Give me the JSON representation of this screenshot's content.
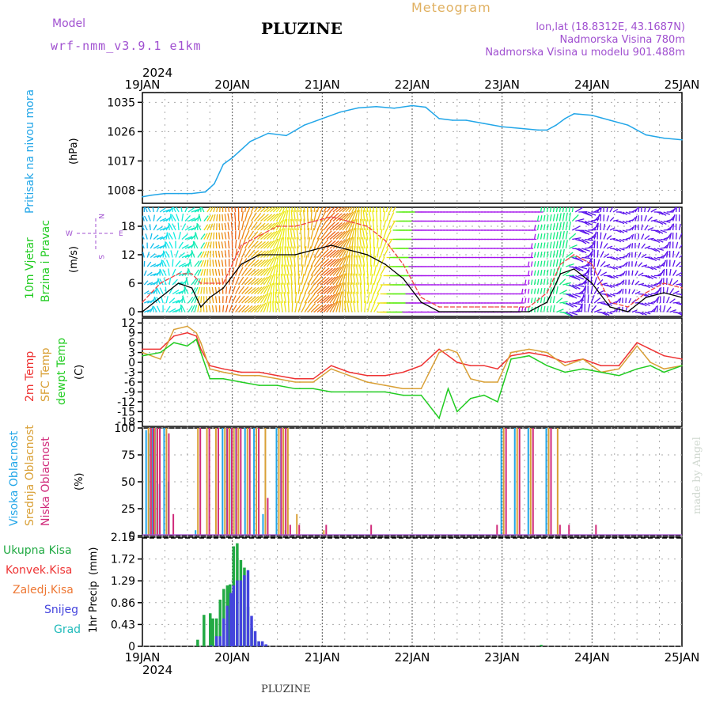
{
  "header": {
    "model_label": "Model",
    "model_name": "wrf-nmm_v3.9.1 e1km",
    "station": "PLUZINE",
    "meteogram": "Meteogram",
    "lonlat": "lon,lat (18.8312E, 43.1687N)",
    "altitude": "Nadmorska Visina 780m",
    "model_altitude": "Nadmorska Visina u modelu 901.488m",
    "credit": "made by Angel",
    "footer": "PLUZINE"
  },
  "time_axis": {
    "year": "2024",
    "labels": [
      "19JAN",
      "20JAN",
      "21JAN",
      "22JAN",
      "23JAN",
      "24JAN",
      "25JAN"
    ]
  },
  "colors": {
    "pressure": "#22a6e8",
    "wind_speed": "#ee4444",
    "wind_gust": "#000000",
    "t2m": "#ee3333",
    "sfc": "#d9a036",
    "dewpt": "#22cc22",
    "high_cloud": "#22a6e8",
    "mid_cloud": "#d9a036",
    "low_cloud": "#d02a7a",
    "total_precip": "#22aa44",
    "conv_precip": "#ee3333",
    "frz_precip": "#ee7733",
    "snow": "#4444dd",
    "hail": "#22bbbb",
    "purple": "#a050d0"
  },
  "chart_data": [
    {
      "type": "line",
      "panel": "pressure",
      "ylabel_name": "Pritisak na nivou mora",
      "ylabel_unit": "(hPa)",
      "ylim": [
        1004,
        1038
      ],
      "yticks": [
        1008,
        1017,
        1026,
        1035
      ],
      "x": [
        0,
        0.1,
        0.25,
        0.4,
        0.55,
        0.7,
        0.8,
        0.9,
        1.0,
        1.2,
        1.4,
        1.6,
        1.8,
        2.0,
        2.2,
        2.4,
        2.6,
        2.8,
        3.0,
        3.15,
        3.3,
        3.45,
        3.6,
        3.8,
        4.0,
        4.2,
        4.4,
        4.5,
        4.6,
        4.7,
        4.8,
        5.0,
        5.2,
        5.4,
        5.6,
        5.8,
        6.0
      ],
      "series": [
        {
          "key": "pressure",
          "values": [
            1006,
            1006.5,
            1007,
            1007,
            1007,
            1007.5,
            1010,
            1016,
            1018,
            1023,
            1025.5,
            1024.8,
            1028,
            1030,
            1032,
            1033.3,
            1033.7,
            1033.2,
            1034,
            1033.5,
            1030,
            1029.5,
            1029.5,
            1028.5,
            1027.5,
            1027,
            1026.5,
            1026.5,
            1028,
            1030,
            1031.5,
            1031,
            1029.5,
            1028,
            1025,
            1024,
            1023.5
          ]
        }
      ]
    },
    {
      "type": "line",
      "panel": "wind",
      "ylabel_name": "10m Vjetar",
      "ylabel_name2": "Brzina i Pravac",
      "ylabel_unit": "(m/s)",
      "compass": [
        "W",
        "E",
        "N",
        "S"
      ],
      "ylim": [
        -1,
        22
      ],
      "yticks": [
        0,
        6,
        12,
        18
      ],
      "x": [
        0,
        0.2,
        0.4,
        0.55,
        0.65,
        0.75,
        0.9,
        1.1,
        1.3,
        1.5,
        1.7,
        1.9,
        2.1,
        2.3,
        2.5,
        2.7,
        2.9,
        3.1,
        3.3,
        3.5,
        3.7,
        3.9,
        4.1,
        4.3,
        4.5,
        4.65,
        4.8,
        5.0,
        5.2,
        5.4,
        5.6,
        5.8,
        6.0
      ],
      "series": [
        {
          "key": "wind_speed",
          "values": [
            2,
            6,
            8,
            8,
            6,
            6,
            6,
            14,
            16,
            18,
            18,
            19,
            20,
            19,
            18,
            15,
            10,
            3,
            1,
            1,
            1,
            1,
            1,
            1,
            4,
            10,
            12,
            10,
            2,
            1,
            4,
            6,
            5
          ]
        },
        {
          "key": "wind_gust",
          "values": [
            0,
            3,
            6,
            5,
            1,
            3,
            5,
            10,
            12,
            12,
            12,
            13,
            14,
            13,
            12,
            10,
            7,
            2,
            0,
            0,
            0,
            0,
            0,
            0,
            2,
            8,
            9,
            6,
            1,
            0,
            3,
            4,
            3
          ]
        }
      ]
    },
    {
      "type": "line",
      "panel": "temperature",
      "ylabel_names": [
        "2m Temp",
        "SFC Temp",
        "dewpt Temp"
      ],
      "ylabel_unit": "(C)",
      "ylim": [
        -19.5,
        13.5
      ],
      "yticks": [
        12,
        9,
        6,
        3,
        0,
        -3,
        -6,
        -9,
        -12,
        -15,
        -18
      ],
      "x": [
        0,
        0.2,
        0.35,
        0.5,
        0.6,
        0.65,
        0.75,
        0.9,
        1.1,
        1.3,
        1.5,
        1.7,
        1.9,
        2.1,
        2.3,
        2.5,
        2.7,
        2.9,
        3.1,
        3.3,
        3.4,
        3.5,
        3.65,
        3.8,
        3.95,
        4.1,
        4.3,
        4.5,
        4.7,
        4.9,
        5.1,
        5.3,
        5.5,
        5.65,
        5.8,
        6.0
      ],
      "series": [
        {
          "key": "t2m",
          "values": [
            4,
            4,
            8,
            9,
            8,
            4,
            -1,
            -2,
            -3,
            -3,
            -4,
            -5,
            -5,
            -1,
            -3,
            -4,
            -4,
            -3,
            -1,
            4,
            2,
            0,
            -1,
            -1,
            -2,
            2,
            3,
            2,
            0,
            1,
            -1,
            -1,
            6,
            4,
            2,
            1
          ]
        },
        {
          "key": "sfc",
          "values": [
            3,
            1,
            10,
            11,
            9,
            6,
            -2,
            -3,
            -4,
            -4,
            -5,
            -6,
            -6,
            -2,
            -4,
            -6,
            -7,
            -8,
            -8,
            3,
            4,
            3,
            -5,
            -6,
            -6,
            3,
            4,
            3,
            -1,
            1,
            -3,
            -2,
            5,
            0,
            -2,
            -1
          ]
        },
        {
          "key": "dewpt",
          "values": [
            2,
            3,
            6,
            5,
            7,
            3,
            -5,
            -5,
            -6,
            -7,
            -7,
            -8,
            -8,
            -9,
            -9,
            -9,
            -9,
            -10,
            -10,
            -17,
            -8,
            -15,
            -11,
            -10,
            -12,
            1,
            2,
            -1,
            -3,
            -2,
            -3,
            -4,
            -2,
            -1,
            -3,
            -1
          ]
        }
      ]
    },
    {
      "type": "bar",
      "panel": "cloud",
      "ylabel_names": [
        "Visoka Oblacnost",
        "Srednja Oblacnost",
        "Niska Oblacnost"
      ],
      "ylabel_unit": "(%)",
      "ylim": [
        0,
        100
      ],
      "yticks": [
        0,
        25,
        50,
        75,
        100
      ],
      "x": [
        0.05,
        0.08,
        0.12,
        0.15,
        0.2,
        0.25,
        0.3,
        0.6,
        0.7,
        0.8,
        0.9,
        0.95,
        1.0,
        1.05,
        1.15,
        1.25,
        1.35,
        1.5,
        1.55,
        1.6,
        1.7,
        2.0,
        2.5,
        3.9,
        4.0,
        4.15,
        4.3,
        4.5,
        4.6,
        4.7,
        5.0
      ],
      "series": [
        {
          "key": "high_cloud",
          "values": [
            98,
            95,
            100,
            100,
            48,
            100,
            50,
            5,
            0,
            0,
            100,
            100,
            100,
            100,
            100,
            100,
            20,
            100,
            100,
            5,
            0,
            0,
            0,
            0,
            100,
            100,
            100,
            100,
            0,
            0,
            0
          ]
        },
        {
          "key": "mid_cloud",
          "values": [
            100,
            100,
            100,
            100,
            0,
            100,
            0,
            100,
            100,
            100,
            100,
            100,
            100,
            100,
            100,
            100,
            100,
            100,
            100,
            100,
            20,
            5,
            0,
            0,
            100,
            100,
            100,
            100,
            100,
            0,
            0
          ]
        },
        {
          "key": "low_cloud",
          "values": [
            100,
            100,
            100,
            100,
            0,
            95,
            20,
            100,
            100,
            100,
            100,
            100,
            100,
            100,
            100,
            100,
            35,
            100,
            100,
            10,
            10,
            10,
            10,
            10,
            100,
            100,
            100,
            100,
            10,
            10,
            10
          ]
        }
      ]
    },
    {
      "type": "bar",
      "panel": "precip",
      "ylabel_name": "1hr Precip",
      "ylabel_unit": "(mm)",
      "legend": [
        "Ukupna Kisa",
        "Konvek.Kisa",
        "Zaledj.Kisa",
        "Snijeg",
        "Grad"
      ],
      "ylim": [
        0,
        2.15
      ],
      "yticks": [
        0,
        0.43,
        0.86,
        1.29,
        1.72,
        2.15
      ],
      "x": [
        0.63,
        0.7,
        0.74,
        0.77,
        0.8,
        0.84,
        0.88,
        0.92,
        0.96,
        0.99,
        1.03,
        1.07,
        1.11,
        1.15,
        1.19,
        1.23,
        1.27,
        1.31,
        1.35,
        4.45
      ],
      "series": [
        {
          "key": "total_precip",
          "values": [
            0.13,
            0.62,
            0.0,
            0.65,
            0.55,
            0.55,
            0.92,
            1.13,
            1.2,
            1.22,
            1.97,
            2.03,
            1.7,
            1.55,
            0.78,
            0.36,
            0.12,
            0.1,
            0.04,
            0.03
          ]
        },
        {
          "key": "snow",
          "values": [
            0,
            0,
            0.02,
            0,
            0.2,
            0.2,
            0.55,
            0.8,
            1.05,
            1.2,
            1.3,
            1.3,
            1.4,
            1.5,
            0.6,
            0.3,
            0.1,
            0.1,
            0.04,
            0
          ]
        }
      ]
    }
  ]
}
